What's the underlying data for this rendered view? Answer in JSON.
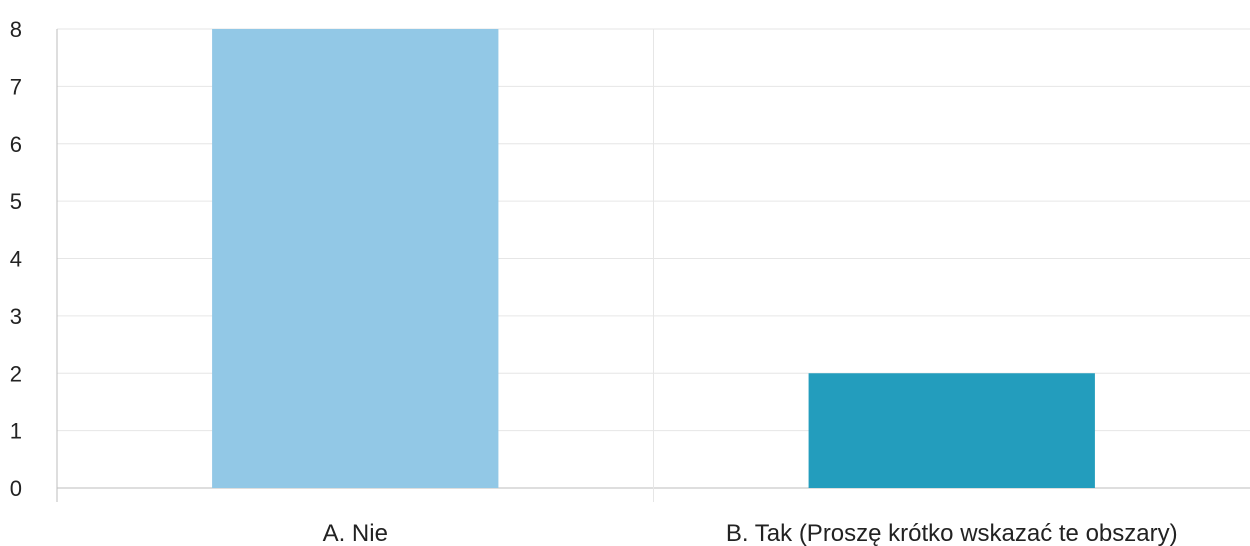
{
  "chart_data": {
    "type": "bar",
    "categories": [
      "A. Nie",
      "B. Tak (Proszę krótko wskazać te obszary)"
    ],
    "values": [
      8,
      2
    ],
    "colors": [
      "#92c8e6",
      "#239dbd"
    ],
    "title": "",
    "xlabel": "",
    "ylabel": "",
    "ylim": [
      0,
      8
    ],
    "yticks": [
      0,
      1,
      2,
      3,
      4,
      5,
      6,
      7,
      8
    ],
    "ytick_labels": [
      "0",
      "1",
      "2",
      "3",
      "4",
      "5",
      "6",
      "7",
      "8"
    ],
    "grid": true,
    "legend": "none"
  }
}
